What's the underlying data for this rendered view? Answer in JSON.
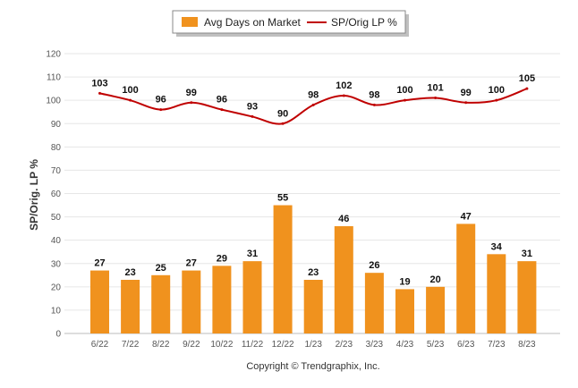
{
  "chart_data": {
    "type": "bar",
    "categories": [
      "6/22",
      "7/22",
      "8/22",
      "9/22",
      "10/22",
      "11/22",
      "12/22",
      "1/23",
      "2/23",
      "3/23",
      "4/23",
      "5/23",
      "6/23",
      "7/23",
      "8/23"
    ],
    "series": [
      {
        "name": "Avg Days on Market",
        "type": "bar",
        "color": "#f0921e",
        "values": [
          27,
          23,
          25,
          27,
          29,
          31,
          55,
          23,
          46,
          26,
          19,
          20,
          47,
          34,
          31
        ]
      },
      {
        "name": "SP/Orig LP %",
        "type": "line",
        "color": "#c00000",
        "values": [
          103,
          100,
          96,
          99,
          96,
          93,
          90,
          98,
          102,
          98,
          100,
          101,
          99,
          100,
          105
        ]
      }
    ],
    "ylabel": "SP/Orig. LP %",
    "ylim": [
      0,
      120
    ],
    "yticks": [
      0,
      10,
      20,
      30,
      40,
      50,
      60,
      70,
      80,
      90,
      100,
      110,
      120
    ],
    "grid": true,
    "legend_position": "top-center"
  },
  "footer": "Copyright © Trendgraphix, Inc."
}
